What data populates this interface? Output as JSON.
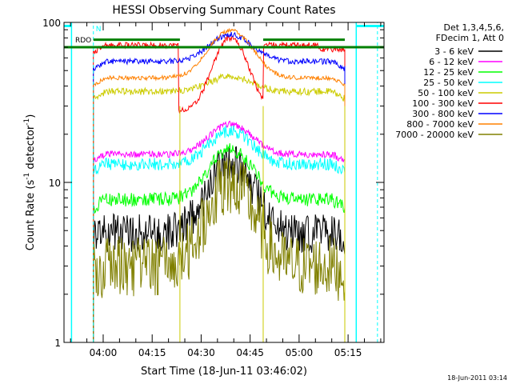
{
  "chart_data": {
    "type": "line",
    "title": "HESSI Observing Summary Count Rates",
    "xlabel": "Start Time (18-Jun-11 03:46:02)",
    "ylabel_main": "Count Rate (s",
    "ylabel_sup": "-1",
    "ylabel_rest": " detector",
    "ylabel_sup2": "-1",
    "ylabel_end": ")",
    "yscale": "log",
    "ylim": [
      1,
      100
    ],
    "xlim_minutes": [
      -12,
      86
    ],
    "y_ticks": [
      {
        "value": 1,
        "label": "1"
      },
      {
        "value": 10,
        "label": "10"
      },
      {
        "value": 100,
        "label": "100"
      }
    ],
    "x_ticks": [
      {
        "minute": 0,
        "label": "04:00"
      },
      {
        "minute": 15,
        "label": "04:15"
      },
      {
        "minute": 30,
        "label": "04:30"
      },
      {
        "minute": 45,
        "label": "04:45"
      },
      {
        "minute": 60,
        "label": "05:00"
      },
      {
        "minute": 75,
        "label": "05:15"
      }
    ],
    "legend_header": [
      "Det 1,3,4,5,6,",
      "FDecim 1, Att 0"
    ],
    "series": [
      {
        "name": "3 - 6 keV",
        "color": "#000000",
        "base": 4.8,
        "peak": 13.5,
        "noise": 0.28
      },
      {
        "name": "6 - 12 keV",
        "color": "#ff00ff",
        "base": 15.0,
        "peak": 23.0,
        "noise": 0.05
      },
      {
        "name": "12 - 25 keV",
        "color": "#00ff00",
        "base": 7.8,
        "peak": 16.0,
        "noise": 0.1
      },
      {
        "name": "25 - 50 keV",
        "color": "#00ffff",
        "base": 13.0,
        "peak": 21.0,
        "noise": 0.09
      },
      {
        "name": "50 - 100 keV",
        "color": "#cccc00",
        "base": 37.0,
        "peak": 46.0,
        "noise": 0.05
      },
      {
        "name": "100 - 300 keV",
        "color": "#ff0000",
        "base": 72.0,
        "peak": 75.0,
        "noise": 0.04
      },
      {
        "name": "300 - 800 keV",
        "color": "#0000ff",
        "base": 57.0,
        "peak": 84.0,
        "noise": 0.04
      },
      {
        "name": "800 - 7000 keV",
        "color": "#ff8000",
        "base": 45.0,
        "peak": 89.0,
        "noise": 0.03
      },
      {
        "name": "7000 - 20000 keV",
        "color": "#808000",
        "base": 3.0,
        "peak": 10.0,
        "noise": 0.45
      }
    ],
    "annotations": {
      "rdo_label": "RDO",
      "n_label": "N",
      "flag_level": 70,
      "saa_level": 78,
      "night_start_minute": -9.7,
      "night_end_minute": 77.5,
      "day_interval_minutes": [
        -3,
        74
      ],
      "colors": {
        "flag": "#008000",
        "night": "#00ffff",
        "attenuator": "#cccc00"
      }
    },
    "footer_date": "18-Jun-2011 03:14"
  }
}
